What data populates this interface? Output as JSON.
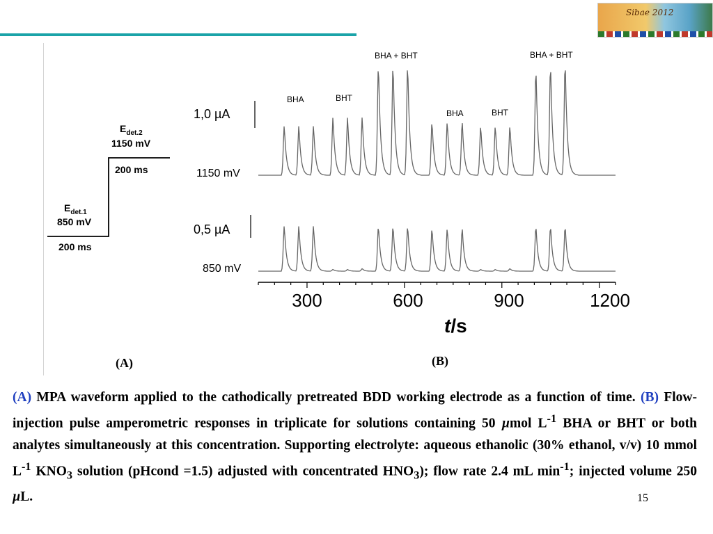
{
  "logo": {
    "text": "Sibae 2012"
  },
  "figure": {
    "panel_a": {
      "label": "(A)",
      "edet2": {
        "E": "E",
        "sub": "det.2"
      },
      "v2": "1150 mV",
      "t2": "200 ms",
      "edet1": {
        "E": "E",
        "sub": "det.1"
      },
      "v1": "850 mV",
      "t1": "200 ms"
    },
    "panel_b": {
      "label": "(B)",
      "trace_upper_label": "1150 mV",
      "trace_lower_label": "850 mV",
      "scale_upper": "1,0 µA",
      "scale_lower": "0,5 µA",
      "peak_labels": [
        "BHA",
        "BHT",
        "BHA + BHT",
        "BHA",
        "BHT",
        "BHA + BHT"
      ],
      "xaxis_title": {
        "t": "t",
        "unit": "/s"
      },
      "xticks": [
        "300",
        "600",
        "900",
        "1200"
      ]
    }
  },
  "chart_data": {
    "type": "line",
    "title": "",
    "xlabel": "t/s",
    "ylabel": "",
    "xlim": [
      150,
      1250
    ],
    "xticks": [
      300,
      600,
      900,
      1200
    ],
    "series": [
      {
        "name": "1150 mV",
        "peaks": [
          {
            "t": 230,
            "h": 0.6
          },
          {
            "t": 275,
            "h": 0.6
          },
          {
            "t": 320,
            "h": 0.6
          },
          {
            "t": 380,
            "h": 0.7
          },
          {
            "t": 425,
            "h": 0.7
          },
          {
            "t": 470,
            "h": 0.7
          },
          {
            "t": 520,
            "h": 1.35
          },
          {
            "t": 565,
            "h": 1.35
          },
          {
            "t": 610,
            "h": 1.35
          },
          {
            "t": 685,
            "h": 0.65
          },
          {
            "t": 732,
            "h": 0.65
          },
          {
            "t": 778,
            "h": 0.65
          },
          {
            "t": 835,
            "h": 0.6
          },
          {
            "t": 880,
            "h": 0.6
          },
          {
            "t": 925,
            "h": 0.6
          },
          {
            "t": 1005,
            "h": 1.3
          },
          {
            "t": 1050,
            "h": 1.35
          },
          {
            "t": 1095,
            "h": 1.38
          }
        ]
      },
      {
        "name": "850 mV",
        "peaks": [
          {
            "t": 230,
            "h": 0.55
          },
          {
            "t": 275,
            "h": 0.55
          },
          {
            "t": 320,
            "h": 0.55
          },
          {
            "t": 380,
            "h": 0.02
          },
          {
            "t": 425,
            "h": 0.02
          },
          {
            "t": 470,
            "h": 0.03
          },
          {
            "t": 520,
            "h": 0.55
          },
          {
            "t": 565,
            "h": 0.55
          },
          {
            "t": 610,
            "h": 0.55
          },
          {
            "t": 685,
            "h": 0.52
          },
          {
            "t": 732,
            "h": 0.52
          },
          {
            "t": 778,
            "h": 0.52
          },
          {
            "t": 835,
            "h": 0.02
          },
          {
            "t": 880,
            "h": 0.02
          },
          {
            "t": 925,
            "h": 0.03
          },
          {
            "t": 1005,
            "h": 0.55
          },
          {
            "t": 1050,
            "h": 0.55
          },
          {
            "t": 1095,
            "h": 0.55
          }
        ]
      }
    ]
  },
  "caption": {
    "a_label": "(A)",
    "a_text": " MPA waveform applied to the cathodically pretreated BDD working electrode as a function of time. ",
    "b_label": "(B)",
    "b_text1": " Flow-injection pulse amperometric responses in triplicate for solutions containing 50 ",
    "mu": "µ",
    "b_text2": "mol L",
    "sup1": "-1",
    "b_text3": " BHA or BHT or both analytes simultaneously at this concentration. Supporting electrolyte: aqueous ethanolic (30% ethanol, v/v) 10 mmol L",
    "sup2": "-1",
    "b_text4": " KNO",
    "sub3": "3",
    "b_text5": " solution (pHcond =1.5) adjusted with concentrated HNO",
    "sub4": "3",
    "b_text6": "); flow rate 2.4 mL min",
    "sup5": "-1",
    "b_text7": "; injected volume 250 ",
    "mu2": "µ",
    "b_text8": "L."
  },
  "page_number": "15"
}
